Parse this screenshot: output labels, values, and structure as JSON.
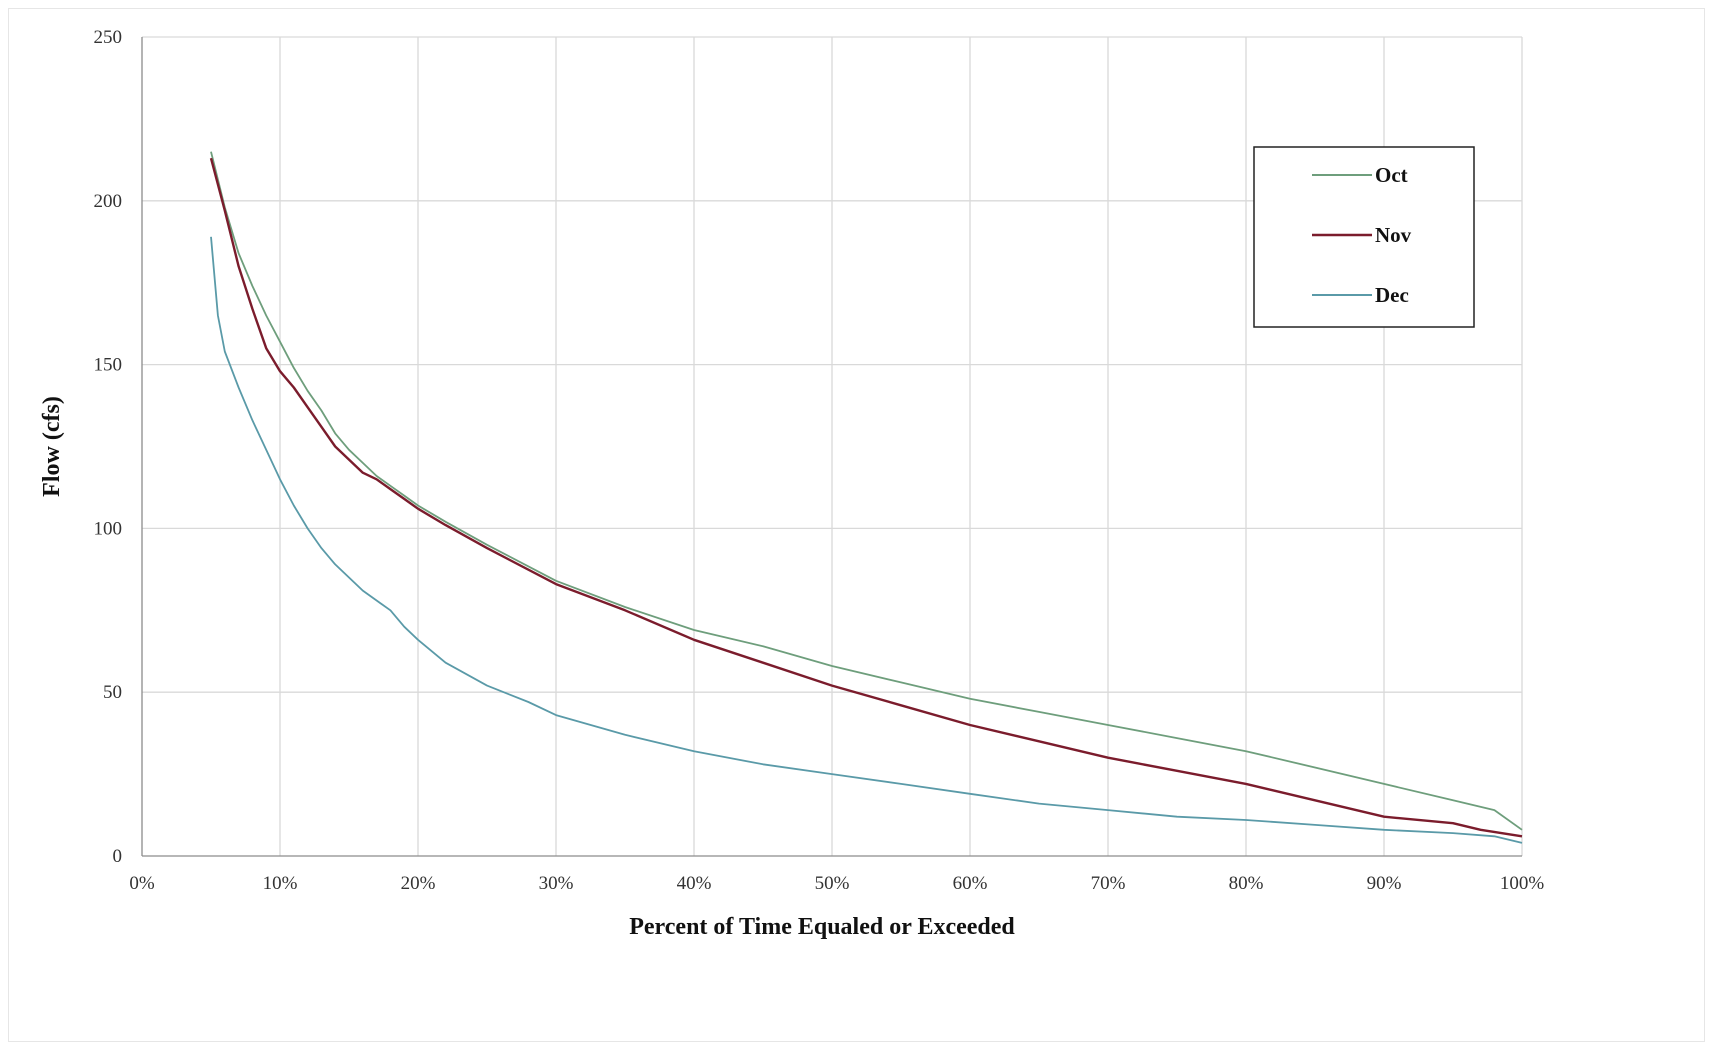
{
  "chart_data": {
    "type": "line",
    "title": "",
    "xlabel": "Percent of Time Equaled or Exceeded",
    "ylabel": "Flow (cfs)",
    "xlim": [
      0,
      100
    ],
    "ylim": [
      0,
      250
    ],
    "x_ticks": [
      0,
      10,
      20,
      30,
      40,
      50,
      60,
      70,
      80,
      90,
      100
    ],
    "x_tick_labels": [
      "0%",
      "10%",
      "20%",
      "30%",
      "40%",
      "50%",
      "60%",
      "70%",
      "80%",
      "90%",
      "100%"
    ],
    "y_ticks": [
      0,
      50,
      100,
      150,
      200,
      250
    ],
    "y_tick_labels": [
      "0",
      "50",
      "100",
      "150",
      "200",
      "250"
    ],
    "grid": true,
    "legend_position": "top-right",
    "series": [
      {
        "name": "Oct",
        "color": "#6e9e7c",
        "points": [
          [
            5,
            215
          ],
          [
            6,
            198
          ],
          [
            7,
            184
          ],
          [
            8,
            174
          ],
          [
            9,
            165
          ],
          [
            10,
            157
          ],
          [
            11,
            149
          ],
          [
            12,
            142
          ],
          [
            13,
            136
          ],
          [
            14,
            129
          ],
          [
            15,
            124
          ],
          [
            16,
            120
          ],
          [
            17,
            116
          ],
          [
            18,
            113
          ],
          [
            19,
            110
          ],
          [
            20,
            107
          ],
          [
            22,
            102
          ],
          [
            25,
            95
          ],
          [
            30,
            84
          ],
          [
            35,
            76
          ],
          [
            40,
            69
          ],
          [
            45,
            64
          ],
          [
            50,
            58
          ],
          [
            55,
            53
          ],
          [
            60,
            48
          ],
          [
            65,
            44
          ],
          [
            70,
            40
          ],
          [
            75,
            36
          ],
          [
            80,
            32
          ],
          [
            85,
            27
          ],
          [
            90,
            22
          ],
          [
            95,
            17
          ],
          [
            98,
            14
          ],
          [
            100,
            8
          ]
        ]
      },
      {
        "name": "Nov",
        "color": "#7b1c2c",
        "points": [
          [
            5,
            213
          ],
          [
            6,
            197
          ],
          [
            7,
            180
          ],
          [
            8,
            167
          ],
          [
            9,
            155
          ],
          [
            10,
            148
          ],
          [
            11,
            143
          ],
          [
            12,
            137
          ],
          [
            13,
            131
          ],
          [
            14,
            125
          ],
          [
            15,
            121
          ],
          [
            16,
            117
          ],
          [
            17,
            115
          ],
          [
            18,
            112
          ],
          [
            19,
            109
          ],
          [
            20,
            106
          ],
          [
            22,
            101
          ],
          [
            25,
            94
          ],
          [
            30,
            83
          ],
          [
            35,
            75
          ],
          [
            40,
            66
          ],
          [
            45,
            59
          ],
          [
            50,
            52
          ],
          [
            55,
            46
          ],
          [
            60,
            40
          ],
          [
            65,
            35
          ],
          [
            70,
            30
          ],
          [
            75,
            26
          ],
          [
            80,
            22
          ],
          [
            85,
            17
          ],
          [
            90,
            12
          ],
          [
            95,
            10
          ],
          [
            97,
            8
          ],
          [
            100,
            6
          ]
        ]
      },
      {
        "name": "Dec",
        "color": "#5a9aa8",
        "points": [
          [
            5,
            189
          ],
          [
            5.5,
            165
          ],
          [
            6,
            154
          ],
          [
            7,
            143
          ],
          [
            8,
            133
          ],
          [
            9,
            124
          ],
          [
            10,
            115
          ],
          [
            11,
            107
          ],
          [
            12,
            100
          ],
          [
            13,
            94
          ],
          [
            14,
            89
          ],
          [
            15,
            85
          ],
          [
            16,
            81
          ],
          [
            17,
            78
          ],
          [
            18,
            75
          ],
          [
            19,
            70
          ],
          [
            20,
            66
          ],
          [
            22,
            59
          ],
          [
            25,
            52
          ],
          [
            28,
            47
          ],
          [
            30,
            43
          ],
          [
            35,
            37
          ],
          [
            40,
            32
          ],
          [
            45,
            28
          ],
          [
            50,
            25
          ],
          [
            55,
            22
          ],
          [
            60,
            19
          ],
          [
            65,
            16
          ],
          [
            70,
            14
          ],
          [
            75,
            12
          ],
          [
            80,
            11
          ],
          [
            85,
            9.5
          ],
          [
            90,
            8
          ],
          [
            95,
            7
          ],
          [
            98,
            6
          ],
          [
            100,
            4
          ]
        ]
      }
    ]
  }
}
